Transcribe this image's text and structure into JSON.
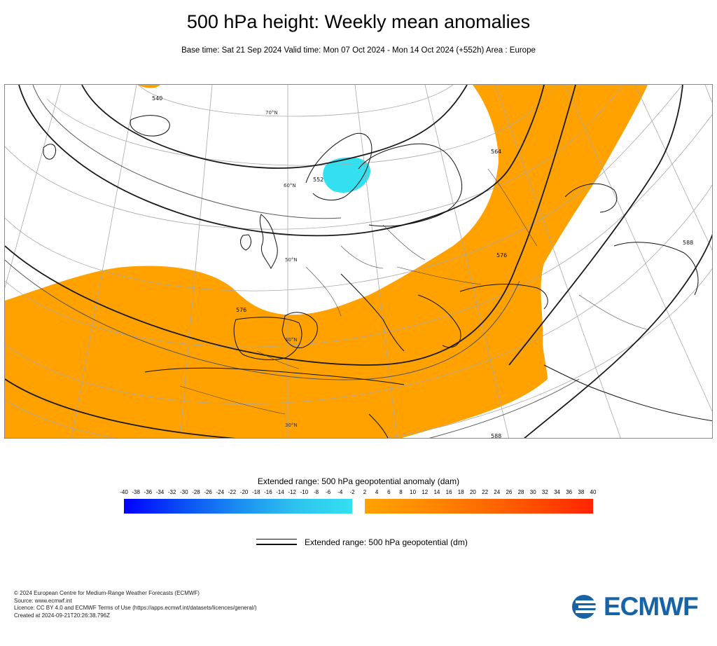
{
  "title": "500 hPa height: Weekly mean anomalies",
  "subtitle": "Base time: Sat 21 Sep 2024 Valid time: Mon 07 Oct 2024 - Mon 14 Oct 2024 (+552h) Area : Europe",
  "map": {
    "region": "Europe",
    "contour_labels": [
      "540",
      "552",
      "564",
      "576",
      "576",
      "588",
      "588"
    ],
    "latitude_labels": [
      "70°N",
      "60°N",
      "50°N",
      "40°N",
      "30°N"
    ],
    "anomaly_colors": {
      "negative": "#33e0f0",
      "positive": "#ffa200"
    }
  },
  "legend": {
    "title": "Extended range: 500 hPa geopotential anomaly (dam)",
    "ticks": [
      "-40",
      "-38",
      "-36",
      "-34",
      "-32",
      "-30",
      "-28",
      "-26",
      "-24",
      "-22",
      "-20",
      "-18",
      "-16",
      "-14",
      "-12",
      "-10",
      "-8",
      "-6",
      "-4",
      "-2",
      "2",
      "4",
      "6",
      "8",
      "10",
      "12",
      "14",
      "16",
      "18",
      "20",
      "22",
      "24",
      "26",
      "28",
      "30",
      "32",
      "34",
      "36",
      "38",
      "40"
    ],
    "colors": {
      "neg_start": "#0000ff",
      "neg_end": "#33e0f0",
      "pos_start": "#ffa200",
      "pos_end": "#ff2400"
    },
    "line_label": "Extended range: 500 hPa geopotential (dm)"
  },
  "footer": {
    "copyright": "© 2024 European Centre for Medium-Range Weather Forecasts (ECMWF)",
    "source": "Source: www.ecmwf.int",
    "licence": "Licence: CC BY 4.0 and ECMWF Terms of Use (https://apps.ecmwf.int/datasets/licences/general/)",
    "created": "Created at 2024-09-21T20:26:38.796Z"
  },
  "logo": {
    "text": "ECMWF",
    "color": "#1763a6"
  }
}
